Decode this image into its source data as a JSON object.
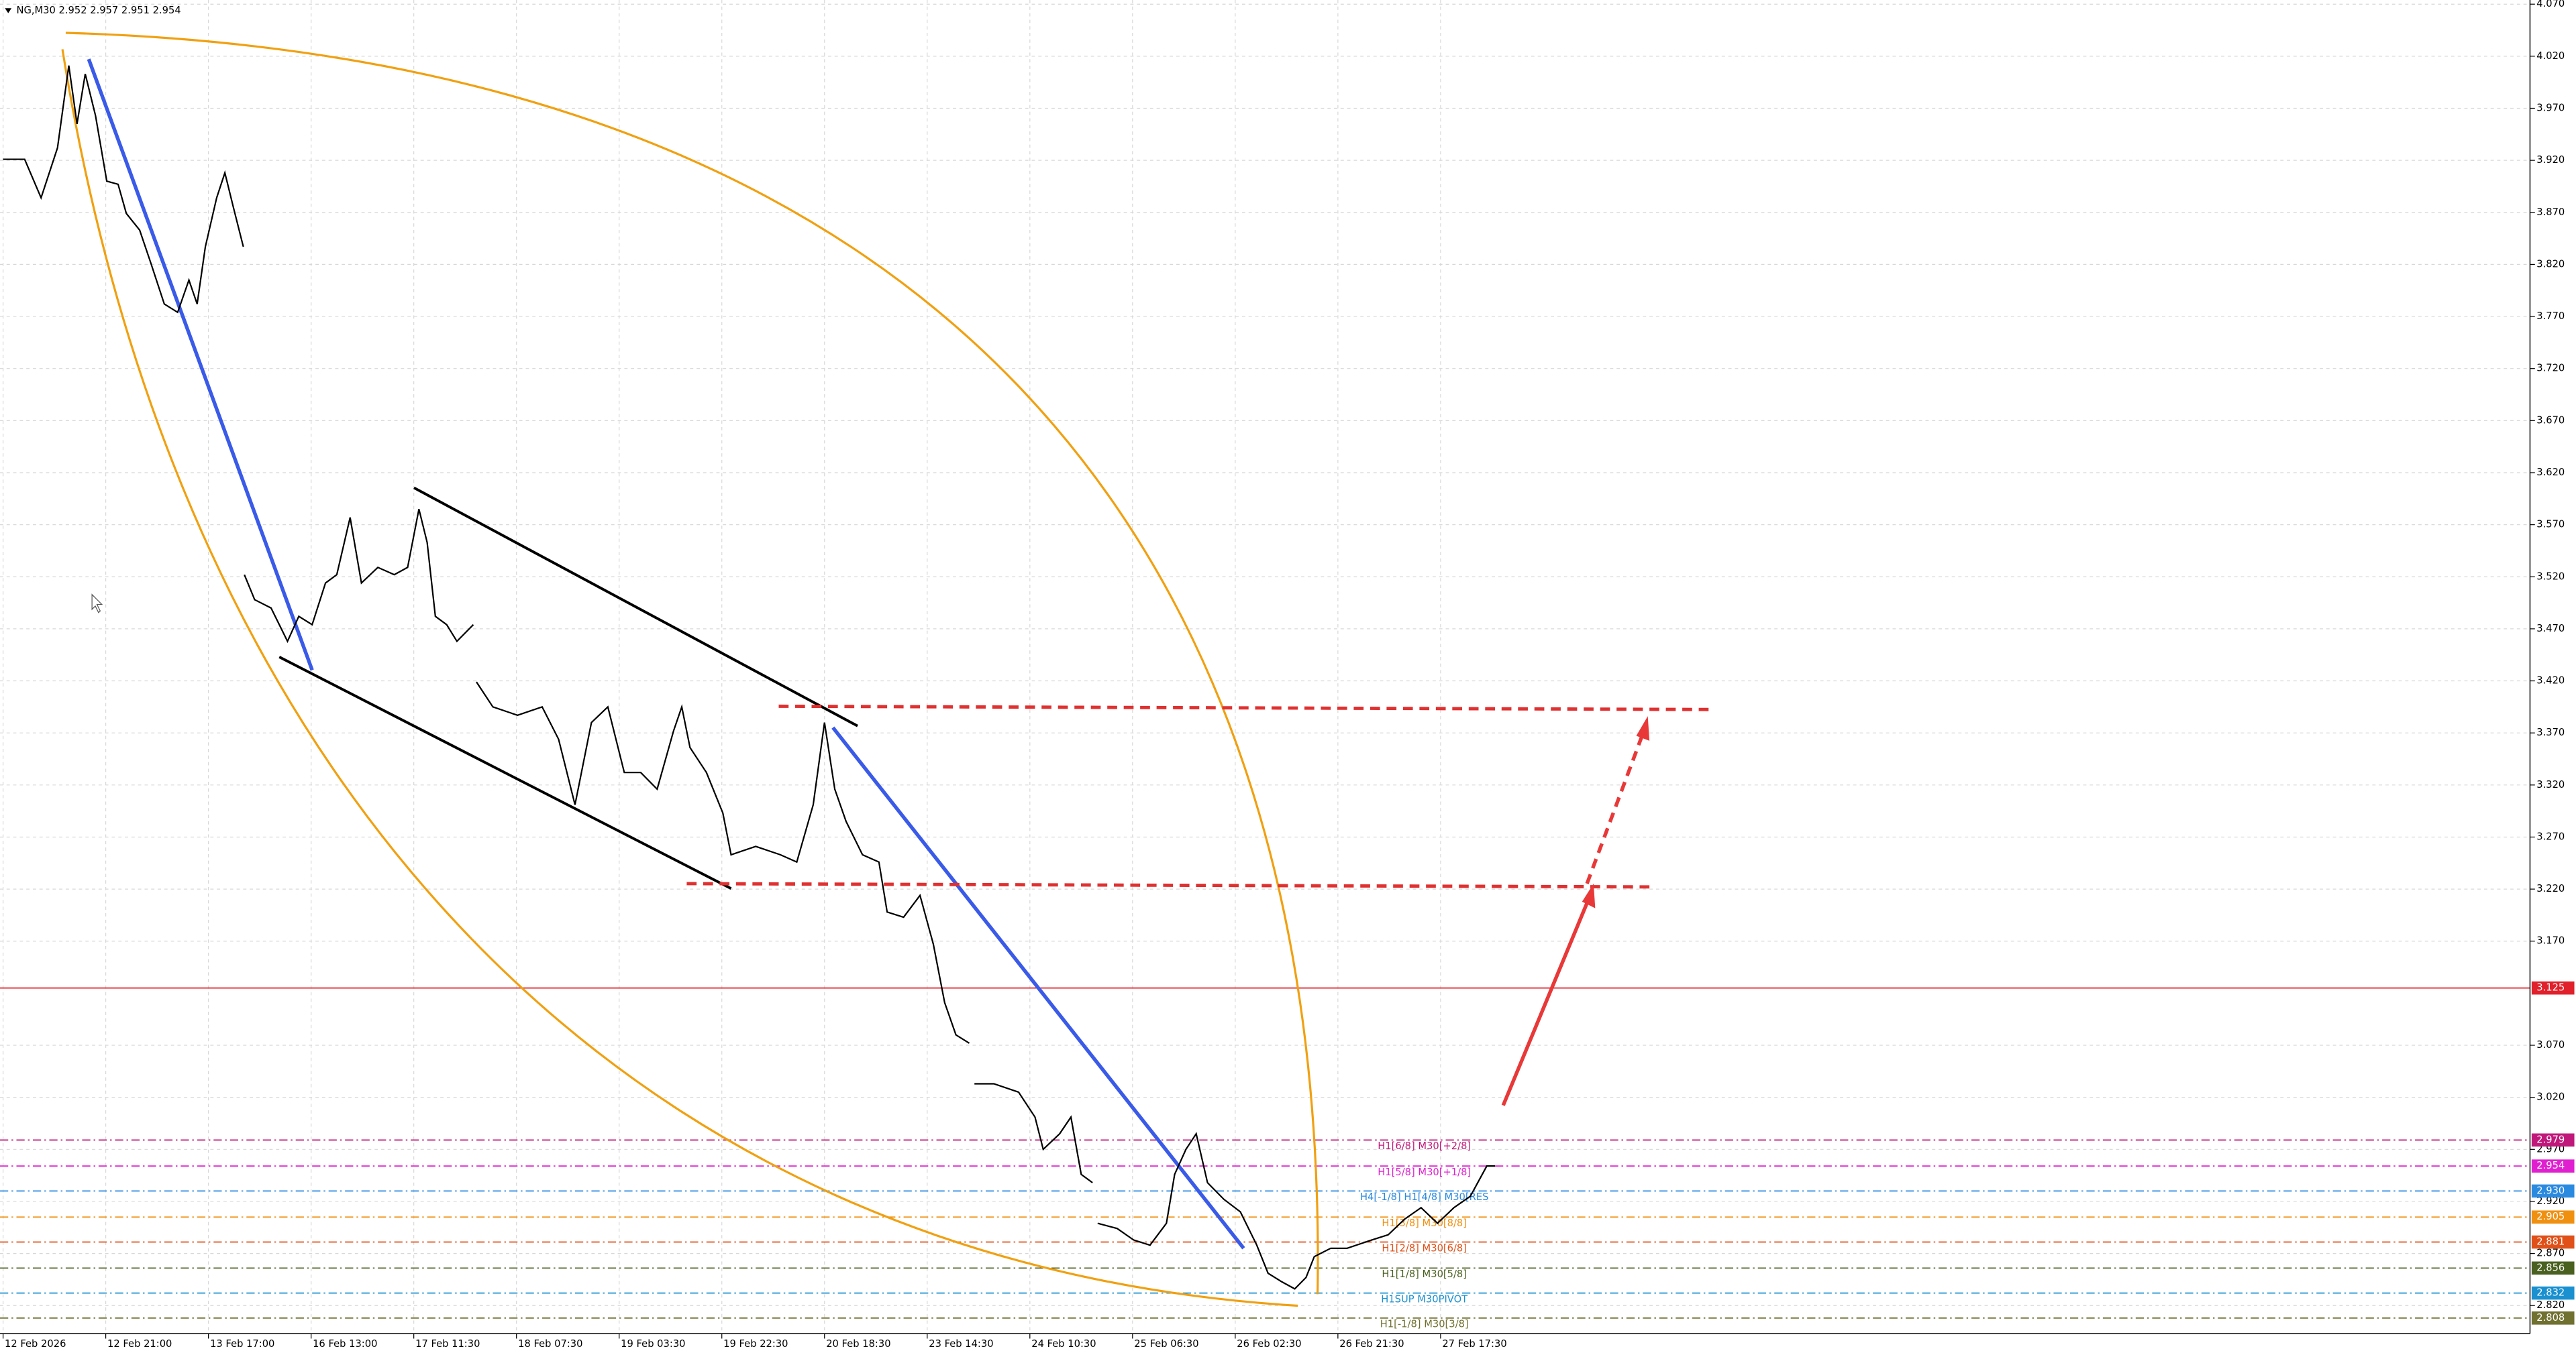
{
  "chart_data": {
    "type": "line",
    "title": "NG,M30  2.952 2.957 2.951 2.954",
    "xlim": [
      -0.03,
      24.61
    ],
    "ylim": [
      2.793,
      4.074
    ],
    "grid": true,
    "xticks": [
      {
        "value": 0,
        "label": "12 Feb 2026"
      },
      {
        "value": 1,
        "label": "12 Feb 21:00"
      },
      {
        "value": 2,
        "label": "13 Feb 17:00"
      },
      {
        "value": 3,
        "label": "16 Feb 13:00"
      },
      {
        "value": 4,
        "label": "17 Feb 11:30"
      },
      {
        "value": 5,
        "label": "18 Feb 07:30"
      },
      {
        "value": 6,
        "label": "19 Feb 03:30"
      },
      {
        "value": 7,
        "label": "19 Feb 22:30"
      },
      {
        "value": 8,
        "label": "20 Feb 18:30"
      },
      {
        "value": 9,
        "label": "23 Feb 14:30"
      },
      {
        "value": 10,
        "label": "24 Feb 10:30"
      },
      {
        "value": 11,
        "label": "25 Feb 06:30"
      },
      {
        "value": 12,
        "label": "26 Feb 02:30"
      },
      {
        "value": 13,
        "label": "26 Feb 21:30"
      },
      {
        "value": 14,
        "label": "27 Feb 17:30"
      }
    ],
    "yticks": [
      {
        "value": 4.07,
        "label": "4.070"
      },
      {
        "value": 4.02,
        "label": "4.020"
      },
      {
        "value": 3.97,
        "label": "3.970"
      },
      {
        "value": 3.92,
        "label": "3.920"
      },
      {
        "value": 3.87,
        "label": "3.870"
      },
      {
        "value": 3.82,
        "label": "3.820"
      },
      {
        "value": 3.77,
        "label": "3.770"
      },
      {
        "value": 3.72,
        "label": "3.720"
      },
      {
        "value": 3.67,
        "label": "3.670"
      },
      {
        "value": 3.62,
        "label": "3.620"
      },
      {
        "value": 3.57,
        "label": "3.570"
      },
      {
        "value": 3.52,
        "label": "3.520"
      },
      {
        "value": 3.47,
        "label": "3.470"
      },
      {
        "value": 3.42,
        "label": "3.420"
      },
      {
        "value": 3.37,
        "label": "3.370"
      },
      {
        "value": 3.32,
        "label": "3.320"
      },
      {
        "value": 3.27,
        "label": "3.270"
      },
      {
        "value": 3.22,
        "label": "3.220"
      },
      {
        "value": 3.17,
        "label": "3.170"
      },
      {
        "value": 3.07,
        "label": "3.070"
      },
      {
        "value": 3.02,
        "label": "3.020"
      },
      {
        "value": 2.97,
        "label": "2.970"
      },
      {
        "value": 2.92,
        "label": "2.920"
      },
      {
        "value": 2.87,
        "label": "2.870"
      },
      {
        "value": 2.82,
        "label": "2.820"
      }
    ],
    "series": [
      {
        "name": "NG,M30",
        "color": "#000000",
        "x": [
          0,
          0.21,
          0.37,
          0.53,
          0.64,
          0.72,
          0.8,
          0.9,
          1.01,
          1.12,
          1.2,
          1.33,
          1.44,
          1.57,
          1.7,
          1.81,
          1.89,
          1.97,
          2.08,
          2.16,
          2.24,
          2.34,
          null,
          2.35,
          2.45,
          2.61,
          2.77,
          2.88,
          3.01,
          3.14,
          3.25,
          3.38,
          3.49,
          3.65,
          3.81,
          3.94,
          4.05,
          4.13,
          4.21,
          4.32,
          4.42,
          4.58,
          null,
          4.61,
          4.77,
          5.01,
          5.25,
          5.41,
          5.57,
          5.73,
          5.89,
          6.05,
          6.21,
          6.37,
          6.53,
          6.61,
          6.69,
          6.85,
          7.01,
          7.09,
          7.33,
          7.57,
          7.73,
          7.89,
          8.0,
          8.1,
          8.21,
          8.37,
          8.53,
          8.61,
          8.77,
          8.93,
          9.06,
          9.17,
          9.28,
          9.41,
          null,
          9.46,
          9.65,
          9.89,
          10.05,
          10.13,
          10.29,
          10.4,
          10.5,
          10.61,
          null,
          10.66,
          10.85,
          11.01,
          11.17,
          11.33,
          11.41,
          11.52,
          11.62,
          11.73,
          11.89,
          12.05,
          12.21,
          12.32,
          12.45,
          12.58,
          12.69,
          12.77,
          12.93,
          13.09,
          13.33,
          13.49,
          13.65,
          13.81,
          13.97,
          14.13,
          14.29,
          14.45,
          14.53
        ],
        "values": [
          3.921,
          3.921,
          3.884,
          3.932,
          4.011,
          3.955,
          4.003,
          3.963,
          3.9,
          3.897,
          3.869,
          3.853,
          3.821,
          3.782,
          3.774,
          3.805,
          3.782,
          3.837,
          3.884,
          3.908,
          3.876,
          3.837,
          null,
          3.522,
          3.498,
          3.49,
          3.458,
          3.482,
          3.474,
          3.514,
          3.522,
          3.577,
          3.514,
          3.529,
          3.522,
          3.529,
          3.585,
          3.553,
          3.482,
          3.474,
          3.458,
          3.474,
          null,
          3.419,
          3.395,
          3.387,
          3.395,
          3.364,
          3.301,
          3.38,
          3.395,
          3.332,
          3.332,
          3.316,
          3.372,
          3.395,
          3.356,
          3.332,
          3.293,
          3.253,
          3.261,
          3.253,
          3.246,
          3.301,
          3.38,
          3.316,
          3.285,
          3.253,
          3.246,
          3.198,
          3.193,
          3.214,
          3.167,
          3.111,
          3.08,
          3.072,
          null,
          3.033,
          3.033,
          3.025,
          3.001,
          2.97,
          2.985,
          3.001,
          2.946,
          2.938,
          null,
          2.899,
          2.894,
          2.883,
          2.878,
          2.899,
          2.946,
          2.97,
          2.985,
          2.938,
          2.922,
          2.91,
          2.878,
          2.851,
          2.843,
          2.836,
          2.847,
          2.867,
          2.875,
          2.875,
          2.883,
          2.888,
          2.903,
          2.914,
          2.899,
          2.914,
          2.925,
          2.954,
          2.954
        ]
      }
    ],
    "levels": [
      {
        "value": 3.125,
        "value_label": "3.125",
        "color": "#e0202a"
      },
      {
        "value": 2.979,
        "value_label": "2.979",
        "name": "H1[6/8] M30[+2/8]",
        "color": "#c0187a"
      },
      {
        "value": 2.954,
        "value_label": "2.954",
        "name": "H1[5/8] M30[+1/8]",
        "color": "#e020d0"
      },
      {
        "value": 2.93,
        "value_label": "2.930",
        "name": "H4[-1/8] H1[4/8] M30[RES",
        "color": "#2a8ae0"
      },
      {
        "value": 2.905,
        "value_label": "2.905",
        "name": "H1[3/8] M30[8/8]",
        "color": "#f09010"
      },
      {
        "value": 2.881,
        "value_label": "2.881",
        "name": "H1[2/8] M30[6/8]",
        "color": "#e05018"
      },
      {
        "value": 2.856,
        "value_label": "2.856",
        "name": "H1[1/8] M30[5/8]",
        "color": "#4a6020"
      },
      {
        "value": 2.832,
        "value_label": "2.832",
        "name": "H1SUP M30PIVOT",
        "color": "#1a90d0"
      },
      {
        "value": 2.808,
        "value_label": "2.808",
        "name": "H1[-1/8] M30[3/8]",
        "color": "#707030"
      }
    ]
  }
}
